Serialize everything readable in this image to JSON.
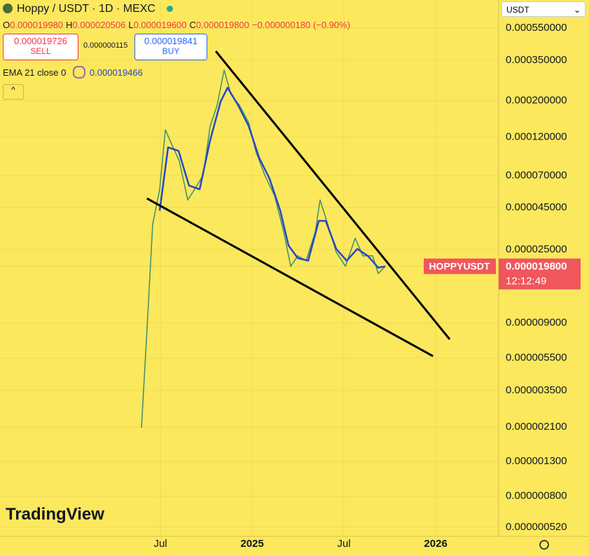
{
  "chart_data": {
    "type": "line",
    "log_scale": true,
    "grid": true,
    "background": "#fbe85d",
    "title": "Hoppy / USDT · 1D · MEXC",
    "ohlc": [
      {
        "label": "O",
        "value": "0.000019980"
      },
      {
        "label": "H",
        "value": "0.000020506"
      },
      {
        "label": "L",
        "value": "0.000019600"
      },
      {
        "label": "C",
        "value": "0.000019800"
      }
    ],
    "change": "−0.000000180 (−0.90%)",
    "sell": {
      "price": "0.000019726",
      "label": "SELL"
    },
    "spread": "0.000000115",
    "buy": {
      "price": "0.000019841",
      "label": "BUY"
    },
    "indicator_value": "0.000019466",
    "currency": "USDT",
    "countdown": "12:12:49",
    "logo": "TradingView",
    "last_price": {
      "value": 1.98e-05,
      "label": "0.000019800"
    },
    "xlim": [
      2023.626,
      2026.343
    ],
    "xticks": [
      {
        "value": 2024.5,
        "label": "Jul"
      },
      2025,
      {
        "value": 2025.5,
        "label": "Jul"
      },
      2026
    ],
    "ylim": [
      4.57e-07,
      0.000813
    ],
    "yticks": [
      {
        "value": 0.00055,
        "label": "0.000550000"
      },
      {
        "value": 0.00035,
        "label": "0.000350000"
      },
      {
        "value": 0.0002,
        "label": "0.000200000"
      },
      {
        "value": 0.00012,
        "label": "0.000120000"
      },
      {
        "value": 7e-05,
        "label": "0.000070000"
      },
      {
        "value": 4.5e-05,
        "label": "0.000045000"
      },
      {
        "value": 2.5e-05,
        "label": "0.000025000"
      },
      {
        "value": 9e-06,
        "label": "0.000009000"
      },
      {
        "value": 5.5e-06,
        "label": "0.000005500"
      },
      {
        "value": 3.5e-06,
        "label": "0.000003500"
      },
      {
        "value": 2.1e-06,
        "label": "0.000002100"
      },
      {
        "value": 1.3e-06,
        "label": "0.000001300"
      },
      {
        "value": 8e-07,
        "label": "0.000000800"
      },
      {
        "value": 5.2e-07,
        "label": "0.000000520"
      }
    ],
    "series": [
      {
        "name": "HOPPYUSDT",
        "color": "#3f8f6a",
        "x": [
          2024.397,
          2024.427,
          2024.458,
          2024.496,
          2024.527,
          2024.561,
          2024.603,
          2024.649,
          2024.687,
          2024.733,
          2024.771,
          2024.809,
          2024.847,
          2024.885,
          2024.931,
          2024.981,
          2025.019,
          2025.069,
          2025.122,
          2025.172,
          2025.21,
          2025.248,
          2025.294,
          2025.344,
          2025.37,
          2025.412,
          2025.458,
          2025.508,
          2025.561,
          2025.603,
          2025.656,
          2025.687,
          2025.725
        ],
        "values": [
          2.08e-06,
          8.2e-06,
          3.56e-05,
          5.8e-05,
          0.000133,
          0.000109,
          8.6e-05,
          5e-05,
          5.8e-05,
          7.05e-05,
          0.00014,
          0.000187,
          0.000306,
          0.000217,
          0.000187,
          0.000147,
          9.9e-05,
          7.05e-05,
          5.3e-05,
          3.2e-05,
          1.98e-05,
          2.29e-05,
          2.14e-05,
          3.2e-05,
          5e-05,
          3.56e-05,
          2.41e-05,
          1.98e-05,
          2.93e-05,
          2.29e-05,
          2.29e-05,
          1.79e-05,
          1.98e-05
        ]
      },
      {
        "name": "EMA 21 close 0",
        "color": "#2746c8",
        "x": [
          2024.496,
          2024.542,
          2024.599,
          2024.656,
          2024.714,
          2024.771,
          2024.828,
          2024.866,
          2024.924,
          2024.981,
          2025.038,
          2025.095,
          2025.153,
          2025.198,
          2025.248,
          2025.305,
          2025.363,
          2025.401,
          2025.458,
          2025.515,
          2025.573,
          2025.63,
          2025.687,
          2025.725
        ],
        "values": [
          4.3e-05,
          0.000104,
          9.9e-05,
          6.1e-05,
          5.8e-05,
          0.000115,
          0.000197,
          0.000239,
          0.000187,
          0.00014,
          9e-05,
          6.7e-05,
          4.3e-05,
          2.65e-05,
          2.22e-05,
          2.14e-05,
          3.73e-05,
          3.73e-05,
          2.52e-05,
          2.14e-05,
          2.52e-05,
          2.29e-05,
          1.94e-05,
          1.98e-05
        ]
      }
    ],
    "annotations": [
      {
        "color": "#000000",
        "x": [
          2024.802,
          2026.076
        ],
        "y": [
          0.000398,
          7.15e-06
        ]
      },
      {
        "color": "#000000",
        "x": [
          2024.427,
          2025.985
        ],
        "y": [
          5.1e-05,
          5.65e-06
        ]
      }
    ]
  }
}
